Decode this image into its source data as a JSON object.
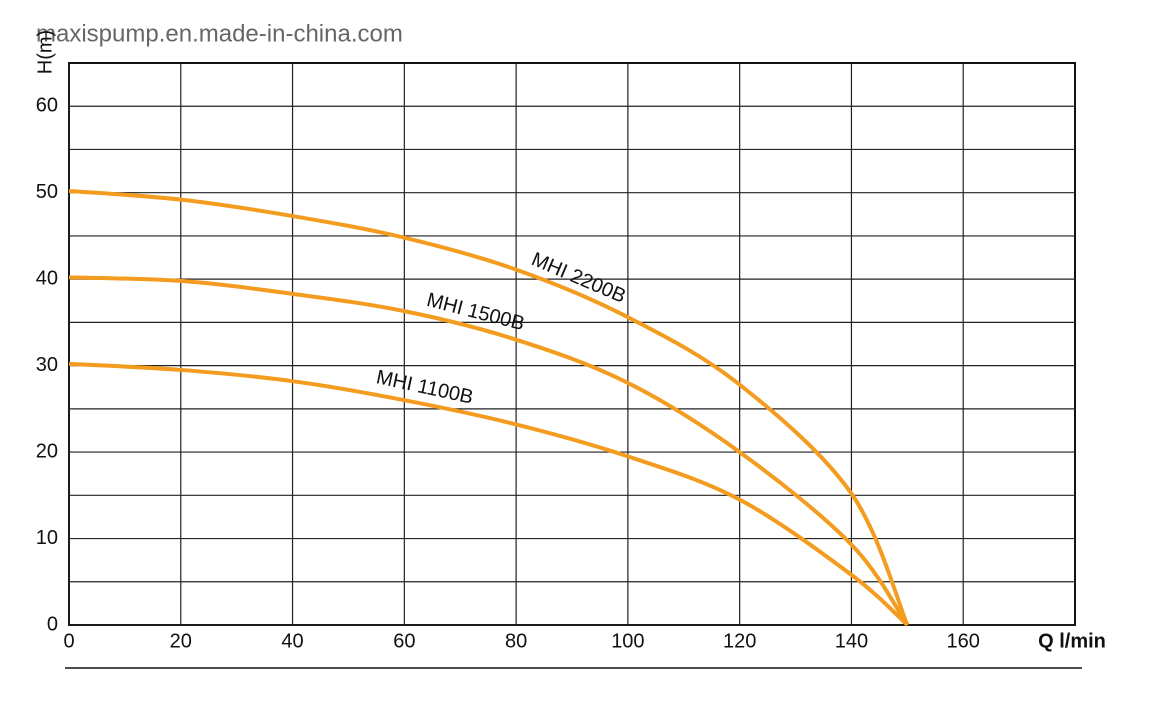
{
  "watermark": "maxispump.en.made-in-china.com",
  "chart_data": {
    "type": "line",
    "x_label": "Q l/min",
    "y_label": "H(m)",
    "x": [
      0,
      20,
      40,
      60,
      80,
      100,
      120,
      140,
      150
    ],
    "series": [
      {
        "name": "MHI 2200B",
        "color": "#f39c1f",
        "values": [
          50.2,
          49.2,
          47.3,
          44.8,
          41.1,
          35.6,
          27.8,
          15.2,
          0
        ]
      },
      {
        "name": "MHI 1500B",
        "color": "#f39c1f",
        "values": [
          40.2,
          39.8,
          38.3,
          36.3,
          33,
          28,
          20,
          9.3,
          0
        ]
      },
      {
        "name": "MHI 1100B",
        "color": "#f39c1f",
        "values": [
          30.2,
          29.5,
          28.2,
          26,
          23.2,
          19.5,
          14.5,
          5.8,
          0
        ]
      }
    ],
    "xlim": [
      0,
      180
    ],
    "ylim": [
      0,
      65
    ],
    "xticks": [
      0,
      20,
      40,
      60,
      80,
      100,
      120,
      140,
      160
    ],
    "yticks": [
      0,
      10,
      20,
      30,
      40,
      50,
      60
    ],
    "y_minor_ticks": [
      5,
      15,
      25,
      35,
      45,
      55
    ],
    "grid": true
  }
}
